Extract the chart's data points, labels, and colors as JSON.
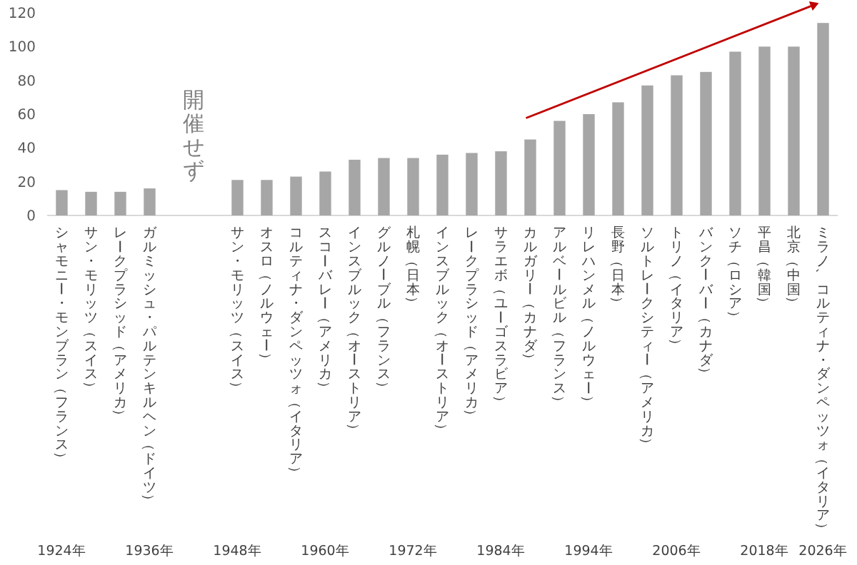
{
  "chart_data": {
    "type": "bar",
    "categories": [
      "シャモニー・モンブラン（フランス）",
      "サン・モリッツ（スイス）",
      "レークプラシッド（アメリカ）",
      "ガルミッシュ・パルテンキルヘン（ドイツ）",
      null,
      null,
      "サン・モリッツ（スイス）",
      "オスロ（ノルウェー）",
      "コルティナ・ダンペッツォ（イタリア）",
      "スコーバレー（アメリカ）",
      "インスブルック（オーストリア）",
      "グルノーブル（フランス）",
      "札幌（日本）",
      "インスブルック（オーストリア）",
      "レークプラシッド（アメリカ）",
      "サラエボ（ユーゴスラビア）",
      "カルガリー（カナダ）",
      "アルベールビル（フランス）",
      "リレハンメル（ノルウェー）",
      "長野（日本）",
      "ソルトレークシティー（アメリカ）",
      "トリノ（イタリア）",
      "バンクーバー（カナダ）",
      "ソチ（ロシア）",
      "平昌（韓国）",
      "北京（中国）",
      "ミラノ、コルティナ・ダンペッツォ（イタリア）"
    ],
    "values": [
      15,
      14,
      14,
      16,
      null,
      null,
      21,
      21,
      23,
      26,
      33,
      34,
      34,
      36,
      37,
      38,
      45,
      56,
      60,
      67,
      77,
      83,
      85,
      97,
      100,
      100,
      114
    ],
    "color": "#a6a6a6",
    "ylim": [
      0,
      120
    ],
    "yticks": [
      0,
      20,
      40,
      60,
      80,
      100,
      120
    ],
    "grid": false,
    "annotations": [
      "開催せず",
      "1924年",
      "1936年",
      "1948年",
      "1960年",
      "1972年",
      "1984年",
      "1994年",
      "2006年",
      "2018年",
      "2026年"
    ]
  }
}
